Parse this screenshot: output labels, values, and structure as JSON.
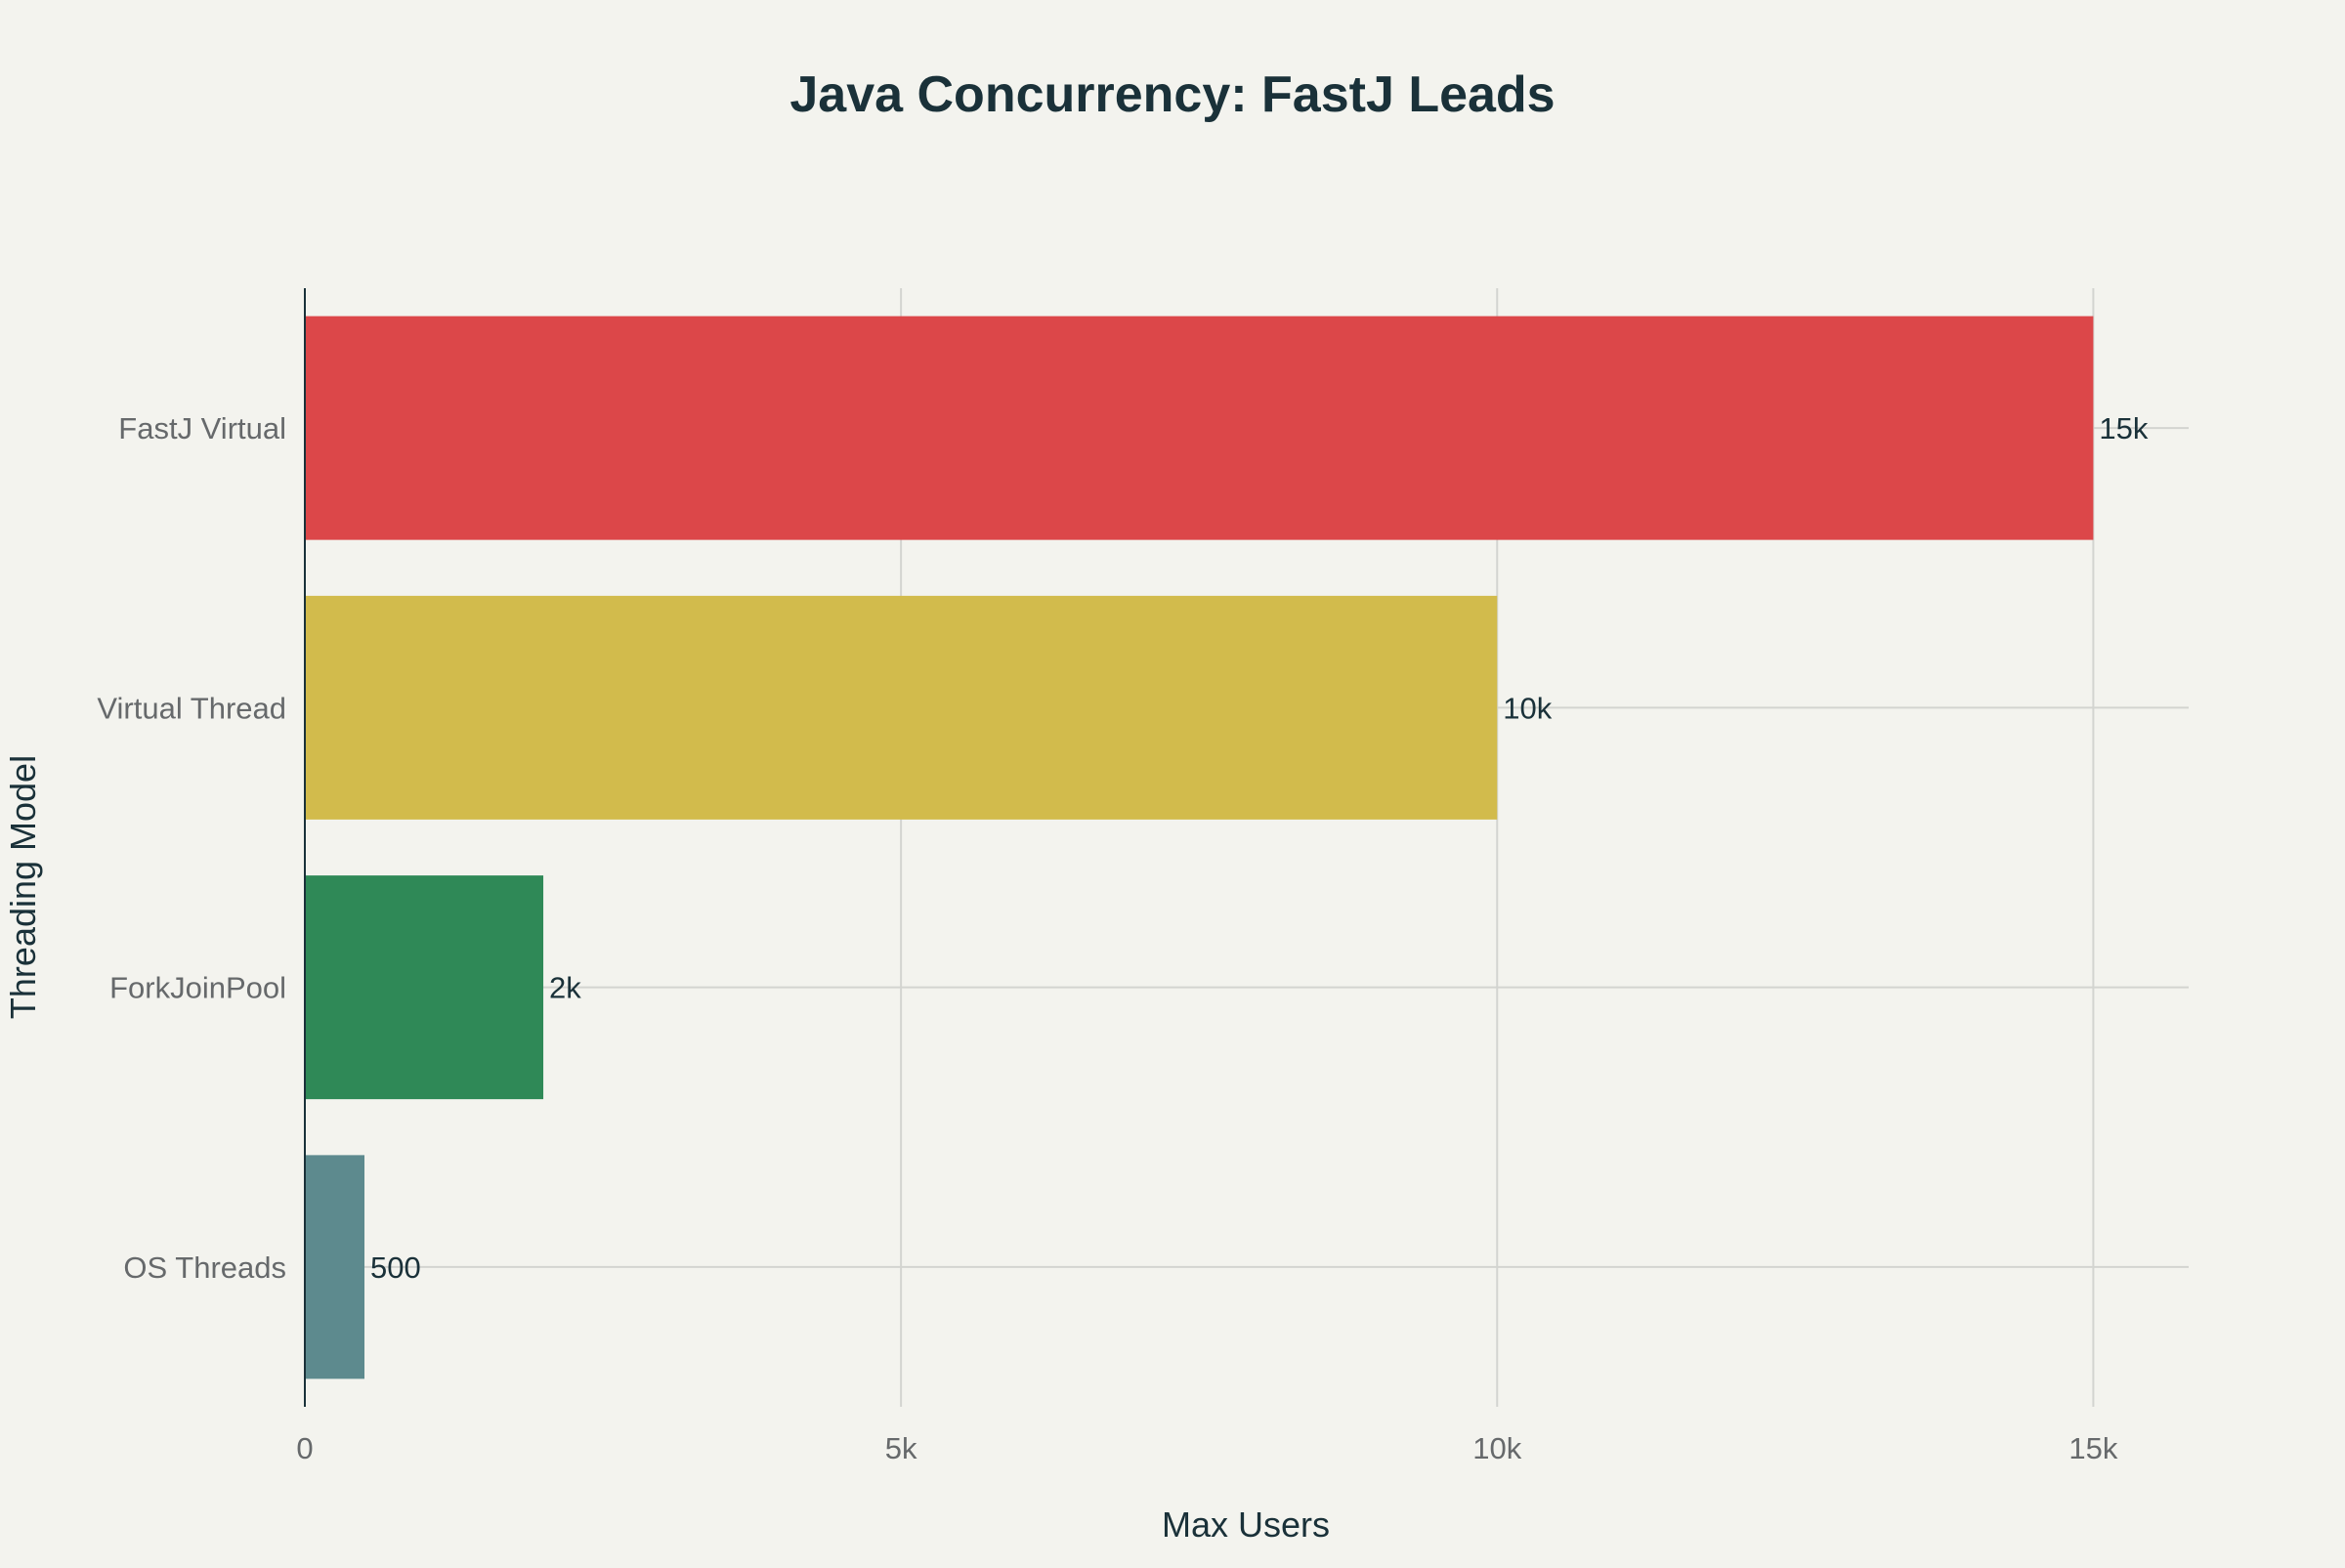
{
  "chart_data": {
    "type": "bar",
    "orientation": "horizontal",
    "title": "Java Concurrency: FastJ Leads",
    "xlabel": "Max Users",
    "ylabel": "Threading Model",
    "categories": [
      "FastJ Virtual",
      "Virtual Thread",
      "ForkJoinPool",
      "OS Threads"
    ],
    "values": [
      15000,
      10000,
      2000,
      500
    ],
    "data_labels": [
      "15k",
      "10k",
      "2k",
      "500"
    ],
    "bar_colors": [
      "#dc4749",
      "#d2bb4c",
      "#2f8957",
      "#5d8a8e"
    ],
    "xlim": [
      0,
      15800
    ],
    "x_ticks": [
      0,
      5000,
      10000,
      15000
    ],
    "x_tick_labels": [
      "0",
      "5k",
      "10k",
      "15k"
    ],
    "grid": true,
    "legend": "none"
  }
}
